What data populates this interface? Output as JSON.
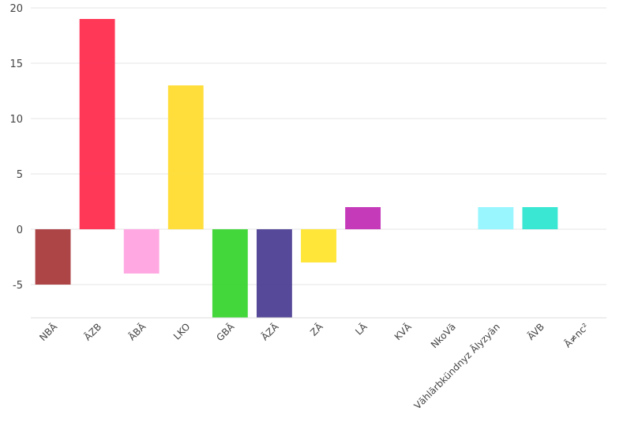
{
  "chart_data": {
    "type": "bar",
    "categories": [
      "NBĀ",
      "ĀZB",
      "ĀBĀ",
      "LKO",
      "GBĀ",
      "ĀZĀ",
      "ZĀ",
      "LĀ",
      "KVĀ",
      "NkoVā",
      "Vāhlārbkündnyz Ālyzyān",
      "ĀVB",
      "Ā≠nc²"
    ],
    "values": [
      -5,
      19,
      -4,
      13,
      -8,
      -8,
      -3,
      2,
      0,
      0,
      2,
      2,
      0
    ],
    "colors": [
      "#a93a3c",
      "#ff2d4f",
      "#ffa3e0",
      "#ffdc32",
      "#39d530",
      "#4e3f94",
      "#ffe52e",
      "#c22fb5",
      "#cccccc",
      "#cccccc",
      "#93f6ff",
      "#2ee6d1",
      "#cccccc"
    ],
    "yticks": [
      -5,
      0,
      5,
      10,
      15,
      20
    ],
    "ylim": [
      -8,
      20
    ],
    "grid": true,
    "title": "",
    "xlabel": "",
    "ylabel": ""
  }
}
